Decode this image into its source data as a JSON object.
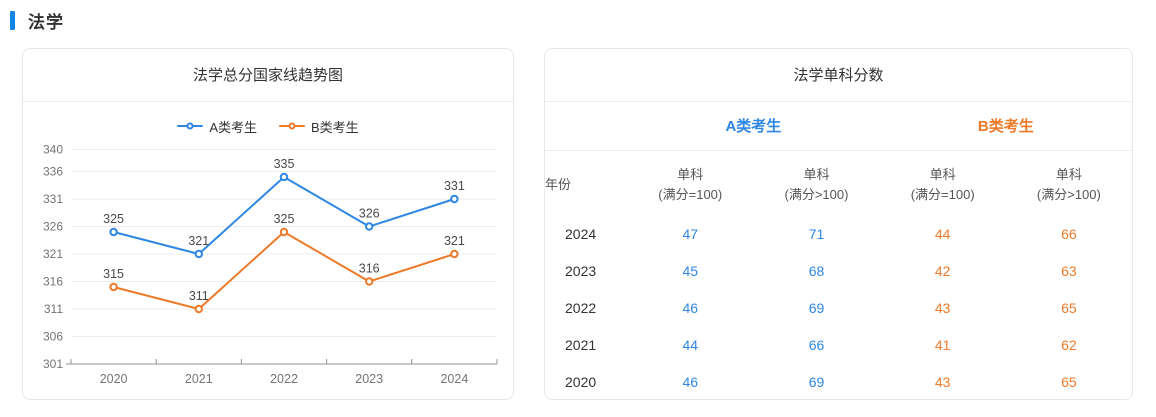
{
  "page": {
    "section_title": "法学",
    "accent_color": "#1285e8"
  },
  "chart_card": {
    "title": "法学总分国家线趋势图"
  },
  "chart_data": {
    "type": "line",
    "title": "法学总分国家线趋势图",
    "x": [
      "2020",
      "2021",
      "2022",
      "2023",
      "2024"
    ],
    "series": [
      {
        "name": "A类考生",
        "color": "#2f87e4",
        "values": [
          325,
          321,
          335,
          326,
          331
        ]
      },
      {
        "name": "B类考生",
        "color": "#ec7a29",
        "values": [
          315,
          311,
          325,
          316,
          321
        ]
      }
    ],
    "xlabel": "",
    "ylabel": "",
    "ylim": [
      301,
      340
    ],
    "yticks": [
      301,
      306,
      311,
      316,
      321,
      326,
      331,
      336,
      340
    ],
    "grid": true,
    "legend_position": "top"
  },
  "table_card": {
    "title": "法学单科分数",
    "group_headers": [
      {
        "label": "A类考生",
        "color": "#2f87e4"
      },
      {
        "label": "B类考生",
        "color": "#ec7a29"
      }
    ],
    "columns": [
      {
        "line1": "年份",
        "line2": ""
      },
      {
        "line1": "单科",
        "line2": "(满分=100)"
      },
      {
        "line1": "单科",
        "line2": "(满分>100)"
      },
      {
        "line1": "单科",
        "line2": "(满分=100)"
      },
      {
        "line1": "单科",
        "line2": "(满分>100)"
      }
    ],
    "rows": [
      {
        "year": "2024",
        "a1": "47",
        "a2": "71",
        "b1": "44",
        "b2": "66"
      },
      {
        "year": "2023",
        "a1": "45",
        "a2": "68",
        "b1": "42",
        "b2": "63"
      },
      {
        "year": "2022",
        "a1": "46",
        "a2": "69",
        "b1": "43",
        "b2": "65"
      },
      {
        "year": "2021",
        "a1": "44",
        "a2": "66",
        "b1": "41",
        "b2": "62"
      },
      {
        "year": "2020",
        "a1": "46",
        "a2": "69",
        "b1": "43",
        "b2": "65"
      }
    ]
  }
}
